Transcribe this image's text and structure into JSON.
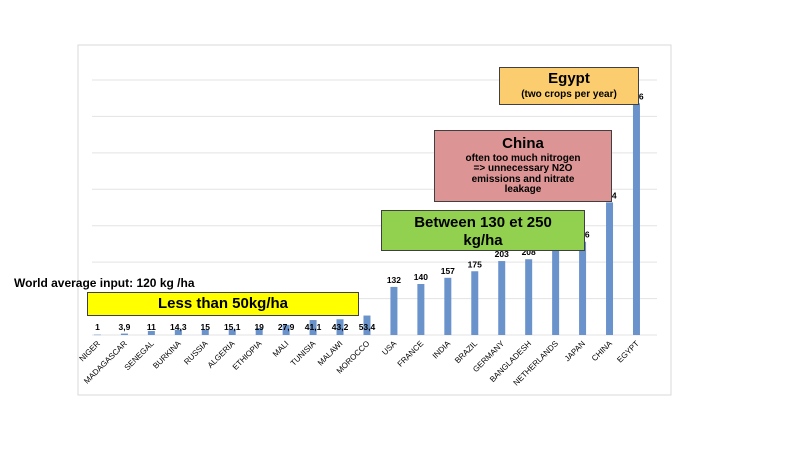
{
  "chart_data": {
    "type": "bar",
    "categories": [
      "NIGER",
      "MADAGASCAR",
      "SENEGAL",
      "BURKINA",
      "RUSSIA",
      "ALGERIA",
      "ETHIOPIA",
      "MALI",
      "TUNISIA",
      "MALAWI",
      "MOROCCO",
      "USA",
      "FRANCE",
      "INDIA",
      "BRAZIL",
      "GERMANY",
      "BANGLADESH",
      "NETHERLANDS",
      "JAPAN",
      "CHINA",
      "EGYPT"
    ],
    "values": [
      1,
      3.9,
      11,
      14.3,
      15,
      15.1,
      19,
      27.9,
      41.1,
      43.2,
      53.4,
      132,
      140,
      157,
      175,
      203,
      208,
      231,
      256,
      364,
      636
    ],
    "value_labels": [
      "1",
      "3,9",
      "11",
      "14,3",
      "15",
      "15,1",
      "19",
      "27,9",
      "41,1",
      "43,2",
      "53,4",
      "132",
      "140",
      "157",
      "175",
      "203",
      "208",
      "231",
      "256",
      "364",
      "636"
    ],
    "ylim": [
      0,
      700
    ],
    "grid": true,
    "bar_color": "#6a93cc",
    "annotations": {
      "egypt": {
        "title": "Egypt",
        "subtitle": "(two crops per year)",
        "bg": "#fccd6e"
      },
      "china": {
        "title": "China",
        "body": [
          "often too much nitrogen",
          "=>  unnecessary N2O",
          "emissions and nitrate",
          "leakage"
        ],
        "bg": "#dc9594"
      },
      "mid": {
        "lines": [
          "Between 130 et 250",
          "kg/ha"
        ],
        "bg": "#92d050"
      },
      "low": {
        "text": "Less than 50kg/ha",
        "bg": "#ffff00"
      },
      "world": "World  average input:  120 kg /ha"
    }
  }
}
